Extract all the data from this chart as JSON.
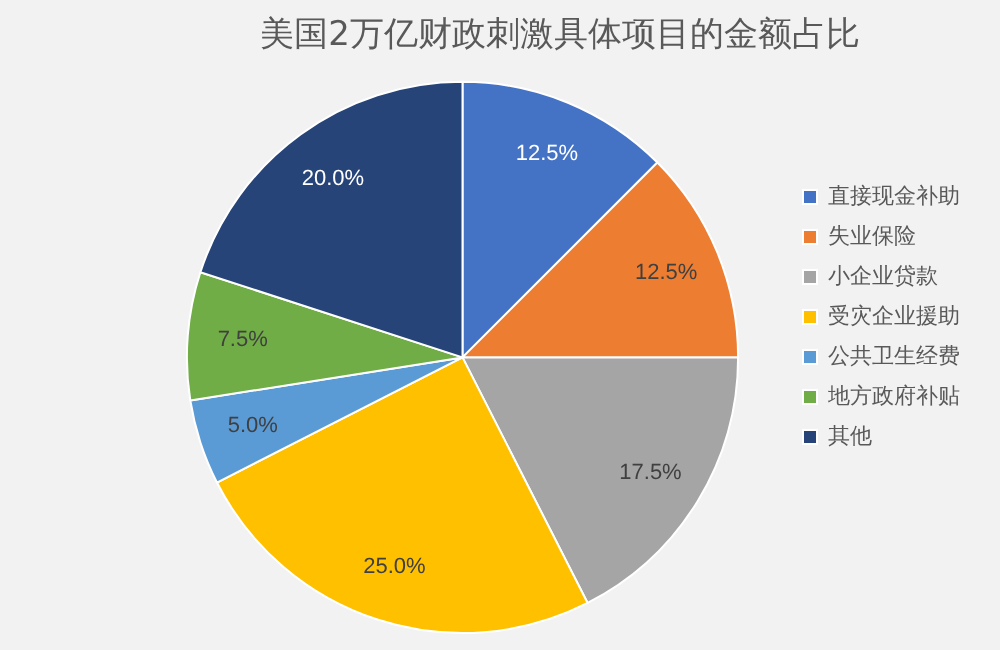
{
  "chart_data": {
    "type": "pie",
    "title": "美国2万亿财政刺激具体项目的金额占比",
    "categories": [
      "直接现金补助",
      "失业保险",
      "小企业贷款",
      "受灾企业援助",
      "公共卫生经费",
      "地方政府补贴",
      "其他"
    ],
    "values": [
      12.5,
      12.5,
      17.5,
      25,
      5,
      7.5,
      20
    ],
    "value_labels": [
      "12.5%",
      "12.5%",
      "17.5%",
      "25.0%",
      "5.0%",
      "7.5%",
      "20.0%"
    ],
    "colors": [
      "#4472c4",
      "#ed7d31",
      "#a5a5a5",
      "#ffc000",
      "#5b9bd5",
      "#70ad47",
      "#264478"
    ],
    "legend": "right"
  }
}
